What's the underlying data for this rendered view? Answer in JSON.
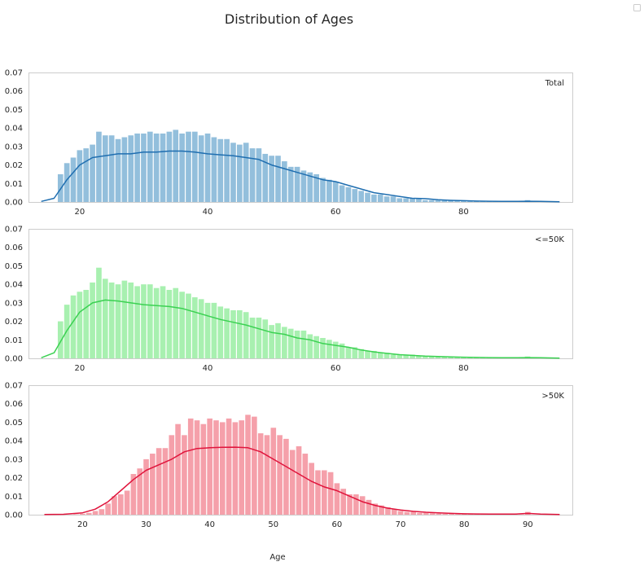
{
  "chart_data": {
    "type": "histogram",
    "title": "Distribution of Ages",
    "xlabel": "Age",
    "ylabel": "",
    "legend": {
      "entries": [],
      "placement": "top-right"
    },
    "grid": false,
    "panels": [
      {
        "label": "Total",
        "bar_color": "#93bfdc",
        "kde_color": "#1f6eb0",
        "xlim": [
          12,
          97
        ],
        "ylim": [
          0,
          0.07
        ],
        "xticks": [
          20,
          40,
          60,
          80
        ],
        "yticks": [
          0.0,
          0.01,
          0.02,
          0.03,
          0.04,
          0.05,
          0.06,
          0.07
        ],
        "bins": {
          "x": [
            17,
            18,
            19,
            20,
            21,
            22,
            23,
            24,
            25,
            26,
            27,
            28,
            29,
            30,
            31,
            32,
            33,
            34,
            35,
            36,
            37,
            38,
            39,
            40,
            41,
            42,
            43,
            44,
            45,
            46,
            47,
            48,
            49,
            50,
            51,
            52,
            53,
            54,
            55,
            56,
            57,
            58,
            59,
            60,
            61,
            62,
            63,
            64,
            65,
            66,
            67,
            68,
            69,
            70,
            71,
            72,
            73,
            74,
            75,
            76,
            77,
            78,
            79,
            80,
            81,
            82,
            83,
            84,
            85,
            86,
            87,
            88,
            89,
            90
          ],
          "values": [
            0.015,
            0.021,
            0.024,
            0.028,
            0.029,
            0.031,
            0.038,
            0.036,
            0.036,
            0.034,
            0.035,
            0.036,
            0.037,
            0.037,
            0.038,
            0.037,
            0.037,
            0.038,
            0.039,
            0.037,
            0.038,
            0.038,
            0.036,
            0.037,
            0.035,
            0.034,
            0.034,
            0.032,
            0.031,
            0.032,
            0.029,
            0.029,
            0.026,
            0.025,
            0.025,
            0.022,
            0.019,
            0.019,
            0.017,
            0.016,
            0.015,
            0.013,
            0.012,
            0.011,
            0.009,
            0.008,
            0.007,
            0.006,
            0.005,
            0.004,
            0.004,
            0.003,
            0.003,
            0.002,
            0.002,
            0.002,
            0.002,
            0.001,
            0.001,
            0.001,
            0.001,
            0.0008,
            0.0007,
            0.0006,
            0.0005,
            0.0004,
            0.0003,
            0.0003,
            0.0002,
            0.0002,
            0.0002,
            0.0002,
            0.0002,
            0.001
          ]
        },
        "kde": {
          "x": [
            14,
            16,
            18,
            20,
            22,
            24,
            26,
            28,
            30,
            32,
            34,
            36,
            38,
            40,
            42,
            44,
            46,
            48,
            50,
            52,
            54,
            56,
            58,
            60,
            62,
            64,
            66,
            68,
            70,
            72,
            74,
            76,
            78,
            80,
            82,
            84,
            86,
            88,
            90,
            92,
            95
          ],
          "y": [
            0.0003,
            0.002,
            0.012,
            0.02,
            0.024,
            0.025,
            0.026,
            0.026,
            0.027,
            0.027,
            0.0275,
            0.0275,
            0.027,
            0.026,
            0.0255,
            0.025,
            0.024,
            0.023,
            0.02,
            0.018,
            0.016,
            0.014,
            0.012,
            0.011,
            0.009,
            0.007,
            0.005,
            0.004,
            0.003,
            0.002,
            0.0018,
            0.0012,
            0.0009,
            0.0007,
            0.0005,
            0.0004,
            0.0003,
            0.0003,
            0.0004,
            0.0003,
            0.0001
          ]
        }
      },
      {
        "label": "<=50K",
        "bar_color": "#a8f0b0",
        "kde_color": "#3bd152",
        "xlim": [
          12,
          97
        ],
        "ylim": [
          0,
          0.07
        ],
        "xticks": [
          20,
          40,
          60,
          80
        ],
        "yticks": [
          0.0,
          0.01,
          0.02,
          0.03,
          0.04,
          0.05,
          0.06,
          0.07
        ],
        "bins": {
          "x": [
            17,
            18,
            19,
            20,
            21,
            22,
            23,
            24,
            25,
            26,
            27,
            28,
            29,
            30,
            31,
            32,
            33,
            34,
            35,
            36,
            37,
            38,
            39,
            40,
            41,
            42,
            43,
            44,
            45,
            46,
            47,
            48,
            49,
            50,
            51,
            52,
            53,
            54,
            55,
            56,
            57,
            58,
            59,
            60,
            61,
            62,
            63,
            64,
            65,
            66,
            67,
            68,
            69,
            70,
            71,
            72,
            73,
            74,
            75,
            76,
            77,
            78,
            79,
            80,
            81,
            82,
            83,
            84,
            85,
            86,
            87,
            88,
            89,
            90
          ],
          "values": [
            0.02,
            0.029,
            0.034,
            0.036,
            0.037,
            0.041,
            0.049,
            0.043,
            0.041,
            0.04,
            0.042,
            0.041,
            0.039,
            0.04,
            0.04,
            0.038,
            0.039,
            0.037,
            0.038,
            0.036,
            0.035,
            0.033,
            0.032,
            0.03,
            0.03,
            0.028,
            0.027,
            0.026,
            0.026,
            0.025,
            0.022,
            0.022,
            0.021,
            0.018,
            0.019,
            0.017,
            0.016,
            0.015,
            0.015,
            0.013,
            0.012,
            0.011,
            0.01,
            0.009,
            0.008,
            0.006,
            0.006,
            0.005,
            0.004,
            0.004,
            0.003,
            0.003,
            0.002,
            0.002,
            0.002,
            0.002,
            0.0015,
            0.001,
            0.001,
            0.001,
            0.0008,
            0.0007,
            0.0006,
            0.0005,
            0.0005,
            0.0004,
            0.0003,
            0.0003,
            0.0002,
            0.0002,
            0.0002,
            0.0002,
            0.0002,
            0.001
          ]
        },
        "kde": {
          "x": [
            14,
            16,
            18,
            20,
            22,
            24,
            26,
            28,
            30,
            32,
            34,
            36,
            38,
            40,
            42,
            44,
            46,
            48,
            50,
            52,
            54,
            56,
            58,
            60,
            62,
            64,
            66,
            68,
            70,
            72,
            74,
            76,
            78,
            80,
            82,
            84,
            86,
            88,
            90,
            92,
            95
          ],
          "y": [
            0.0003,
            0.003,
            0.015,
            0.025,
            0.03,
            0.0315,
            0.031,
            0.03,
            0.029,
            0.0285,
            0.028,
            0.027,
            0.025,
            0.023,
            0.021,
            0.0195,
            0.018,
            0.016,
            0.014,
            0.013,
            0.011,
            0.01,
            0.008,
            0.007,
            0.006,
            0.0045,
            0.0035,
            0.0027,
            0.002,
            0.0016,
            0.0012,
            0.001,
            0.0008,
            0.0006,
            0.0005,
            0.0004,
            0.0003,
            0.0003,
            0.0004,
            0.0003,
            0.0001
          ]
        }
      },
      {
        "label": ">50K",
        "bar_color": "#f5a0aa",
        "kde_color": "#e0143c",
        "xlim": [
          11.5,
          97
        ],
        "ylim": [
          0,
          0.07
        ],
        "xticks": [
          20,
          30,
          40,
          50,
          60,
          70,
          80,
          90
        ],
        "yticks": [
          0.0,
          0.01,
          0.02,
          0.03,
          0.04,
          0.05,
          0.06,
          0.07
        ],
        "bins": {
          "x": [
            19,
            20,
            21,
            22,
            23,
            24,
            25,
            26,
            27,
            28,
            29,
            30,
            31,
            32,
            33,
            34,
            35,
            36,
            37,
            38,
            39,
            40,
            41,
            42,
            43,
            44,
            45,
            46,
            47,
            48,
            49,
            50,
            51,
            52,
            53,
            54,
            55,
            56,
            57,
            58,
            59,
            60,
            61,
            62,
            63,
            64,
            65,
            66,
            67,
            68,
            69,
            70,
            71,
            72,
            73,
            74,
            75,
            76,
            77,
            78,
            79,
            80,
            81,
            82,
            83,
            84,
            85,
            86,
            87,
            88,
            89,
            90
          ],
          "values": [
            0.0002,
            0.0005,
            0.001,
            0.002,
            0.003,
            0.006,
            0.01,
            0.011,
            0.013,
            0.022,
            0.025,
            0.03,
            0.033,
            0.036,
            0.036,
            0.043,
            0.049,
            0.043,
            0.052,
            0.051,
            0.049,
            0.052,
            0.051,
            0.05,
            0.052,
            0.05,
            0.051,
            0.054,
            0.053,
            0.044,
            0.043,
            0.047,
            0.043,
            0.041,
            0.035,
            0.037,
            0.033,
            0.028,
            0.024,
            0.024,
            0.023,
            0.017,
            0.014,
            0.011,
            0.011,
            0.01,
            0.008,
            0.006,
            0.005,
            0.004,
            0.003,
            0.002,
            0.0015,
            0.0015,
            0.001,
            0.001,
            0.0008,
            0.0006,
            0.0005,
            0.0004,
            0.0003,
            0.0003,
            0.0002,
            0.0002,
            0.0002,
            0.0002,
            0.0001,
            0.0001,
            0.0001,
            0.0001,
            0.0001,
            0.0015
          ]
        },
        "kde": {
          "x": [
            14,
            17,
            20,
            22,
            24,
            26,
            28,
            30,
            32,
            34,
            36,
            38,
            40,
            42,
            44,
            46,
            48,
            50,
            52,
            54,
            56,
            58,
            60,
            62,
            64,
            66,
            68,
            70,
            72,
            74,
            76,
            78,
            80,
            82,
            84,
            86,
            88,
            90,
            92,
            95
          ],
          "y": [
            0.0001,
            0.0002,
            0.001,
            0.003,
            0.007,
            0.013,
            0.019,
            0.024,
            0.027,
            0.03,
            0.034,
            0.0358,
            0.0362,
            0.0364,
            0.0365,
            0.0362,
            0.034,
            0.03,
            0.026,
            0.022,
            0.018,
            0.015,
            0.013,
            0.01,
            0.007,
            0.005,
            0.0035,
            0.0025,
            0.0018,
            0.0013,
            0.001,
            0.0007,
            0.0005,
            0.0004,
            0.0003,
            0.0003,
            0.0003,
            0.0007,
            0.0003,
            0.0001
          ]
        }
      }
    ]
  }
}
